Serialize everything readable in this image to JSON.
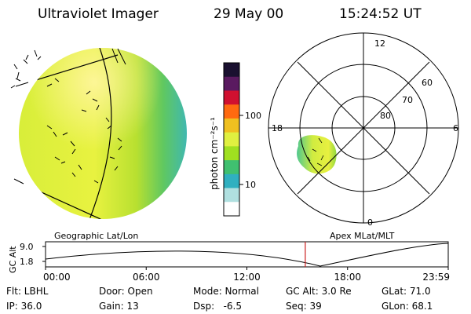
{
  "header": {
    "instrument": "Ultraviolet Imager",
    "date": "29 May 00",
    "time": "15:24:52 UT"
  },
  "colorbar": {
    "label": "photon cm⁻²s⁻¹",
    "ticks": [
      "100",
      "10"
    ],
    "colors": [
      "#1a1030",
      "#5a1a60",
      "#d01030",
      "#ff6a10",
      "#f0c020",
      "#e0f040",
      "#a0e020",
      "#40c070",
      "#30b0c0",
      "#b0e0e0",
      "#ffffff"
    ]
  },
  "polar_plot": {
    "hour_labels": [
      "12",
      "18",
      "6",
      "0"
    ],
    "lat_labels": [
      "60",
      "70",
      "80"
    ]
  },
  "panels": {
    "left_title": "Geographic Lat/Lon",
    "right_title": "Apex MLat/MLT"
  },
  "altitude_plot": {
    "ylabel": "GC Alt",
    "y_ticks": [
      "9.0",
      "1.8"
    ],
    "x_ticks": [
      "00:00",
      "06:00",
      "12:00",
      "18:00",
      "23:59"
    ],
    "current_time_fraction": 0.645,
    "marker_color": "#cc2020"
  },
  "params": {
    "filter": "Flt: LBHL",
    "door": "Door: Open",
    "mode": "Mode: Normal",
    "gc_alt": "GC Alt: 3.0 Re",
    "glat": "GLat: 71.0",
    "ip": "IP: 36.0",
    "gain": "Gain: 13",
    "dsp": "Dsp:   -6.5",
    "seq": "Seq: 39",
    "glon": "GLon: 68.1"
  }
}
